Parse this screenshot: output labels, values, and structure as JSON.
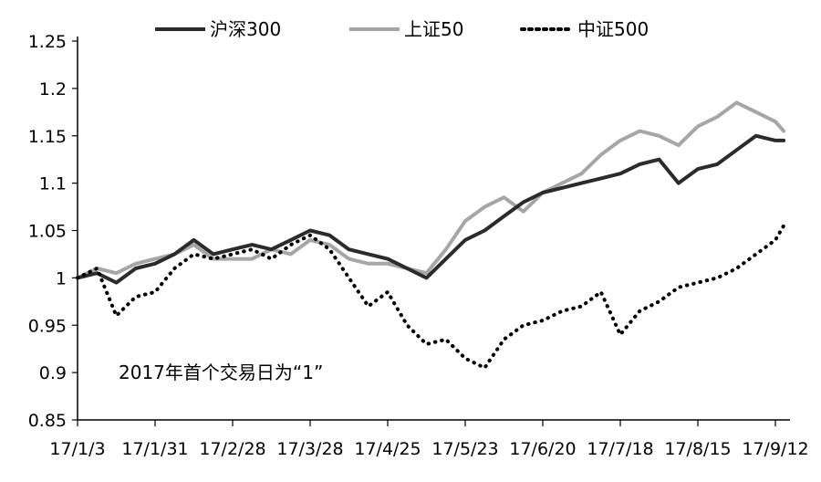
{
  "chart_data": {
    "type": "line",
    "title": "",
    "xlabel": "",
    "ylabel": "",
    "ylim": [
      0.85,
      1.25
    ],
    "yticks": [
      "0.85",
      "0.9",
      "0.95",
      "1",
      "1.05",
      "1.1",
      "1.15",
      "1.2",
      "1.25"
    ],
    "xticks": [
      "17/1/3",
      "17/1/31",
      "17/2/28",
      "17/3/28",
      "17/4/25",
      "17/5/23",
      "17/6/20",
      "17/7/18",
      "17/8/15",
      "17/9/12"
    ],
    "annotation": "2017年首个交易日为“1”",
    "legend_position": "top",
    "grid": false,
    "series": [
      {
        "name": "沪深300",
        "style": "solid",
        "color": "#2b2b2b",
        "x": [
          "17/1/3",
          "17/1/10",
          "17/1/17",
          "17/1/24",
          "17/1/31",
          "17/2/7",
          "17/2/14",
          "17/2/21",
          "17/2/28",
          "17/3/7",
          "17/3/14",
          "17/3/21",
          "17/3/28",
          "17/4/4",
          "17/4/11",
          "17/4/18",
          "17/4/25",
          "17/5/2",
          "17/5/9",
          "17/5/16",
          "17/5/23",
          "17/5/30",
          "17/6/6",
          "17/6/13",
          "17/6/20",
          "17/6/27",
          "17/7/4",
          "17/7/11",
          "17/7/18",
          "17/7/25",
          "17/8/1",
          "17/8/8",
          "17/8/15",
          "17/8/22",
          "17/8/29",
          "17/9/5",
          "17/9/12",
          "17/9/15"
        ],
        "y": [
          1.0,
          1.005,
          0.995,
          1.01,
          1.015,
          1.025,
          1.04,
          1.025,
          1.03,
          1.035,
          1.03,
          1.04,
          1.05,
          1.045,
          1.03,
          1.025,
          1.02,
          1.01,
          1.0,
          1.02,
          1.04,
          1.05,
          1.065,
          1.08,
          1.09,
          1.095,
          1.1,
          1.105,
          1.11,
          1.12,
          1.125,
          1.1,
          1.115,
          1.12,
          1.135,
          1.15,
          1.145,
          1.145
        ]
      },
      {
        "name": "上证50",
        "style": "solid",
        "color": "#a6a6a6",
        "x": [
          "17/1/3",
          "17/1/10",
          "17/1/17",
          "17/1/24",
          "17/1/31",
          "17/2/7",
          "17/2/14",
          "17/2/21",
          "17/2/28",
          "17/3/7",
          "17/3/14",
          "17/3/21",
          "17/3/28",
          "17/4/4",
          "17/4/11",
          "17/4/18",
          "17/4/25",
          "17/5/2",
          "17/5/9",
          "17/5/16",
          "17/5/23",
          "17/5/30",
          "17/6/6",
          "17/6/13",
          "17/6/20",
          "17/6/27",
          "17/7/4",
          "17/7/11",
          "17/7/18",
          "17/7/25",
          "17/8/1",
          "17/8/8",
          "17/8/15",
          "17/8/22",
          "17/8/29",
          "17/9/5",
          "17/9/12",
          "17/9/15"
        ],
        "y": [
          1.0,
          1.01,
          1.005,
          1.015,
          1.02,
          1.025,
          1.035,
          1.02,
          1.02,
          1.02,
          1.03,
          1.025,
          1.04,
          1.035,
          1.02,
          1.015,
          1.015,
          1.01,
          1.005,
          1.03,
          1.06,
          1.075,
          1.085,
          1.07,
          1.09,
          1.1,
          1.11,
          1.13,
          1.145,
          1.155,
          1.15,
          1.14,
          1.16,
          1.17,
          1.185,
          1.175,
          1.165,
          1.155
        ]
      },
      {
        "name": "中证500",
        "style": "dotted",
        "color": "#000000",
        "x": [
          "17/1/3",
          "17/1/10",
          "17/1/17",
          "17/1/24",
          "17/1/31",
          "17/2/7",
          "17/2/14",
          "17/2/21",
          "17/2/28",
          "17/3/7",
          "17/3/14",
          "17/3/21",
          "17/3/28",
          "17/4/4",
          "17/4/11",
          "17/4/18",
          "17/4/25",
          "17/5/2",
          "17/5/9",
          "17/5/16",
          "17/5/23",
          "17/5/30",
          "17/6/6",
          "17/6/13",
          "17/6/20",
          "17/6/27",
          "17/7/4",
          "17/7/11",
          "17/7/18",
          "17/7/25",
          "17/8/1",
          "17/8/8",
          "17/8/15",
          "17/8/22",
          "17/8/29",
          "17/9/5",
          "17/9/12",
          "17/9/15"
        ],
        "y": [
          1.0,
          1.01,
          0.96,
          0.98,
          0.985,
          1.01,
          1.025,
          1.02,
          1.025,
          1.03,
          1.02,
          1.035,
          1.045,
          1.03,
          1.0,
          0.97,
          0.985,
          0.95,
          0.93,
          0.935,
          0.915,
          0.905,
          0.935,
          0.95,
          0.955,
          0.965,
          0.97,
          0.985,
          0.94,
          0.965,
          0.975,
          0.99,
          0.995,
          1.0,
          1.01,
          1.025,
          1.04,
          1.055
        ]
      }
    ]
  }
}
